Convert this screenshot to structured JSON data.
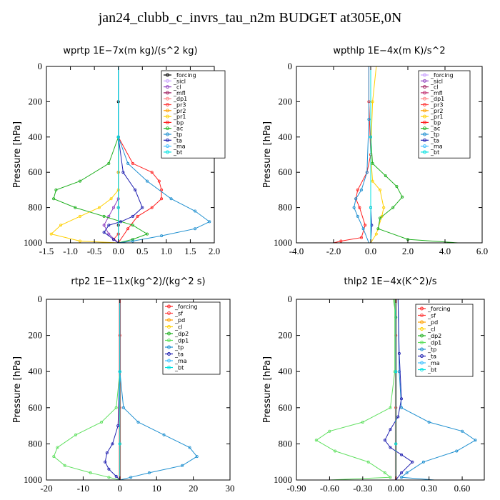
{
  "title": "jan24_clubb_c_invrs_tau_n2m  BUDGET at305E,0N",
  "chart_data": [
    {
      "type": "line",
      "title": "wprtp   1E−7x(m kg)/(s^2 kg)",
      "ylabel": "Pressure [hPa]",
      "ylim": [
        1000,
        0
      ],
      "xlim": [
        -1.5,
        2.0
      ],
      "xticks": [
        "-1.5",
        "-1.0",
        "-0.5",
        "0.0",
        "0.5",
        "1.0",
        "1.5",
        "2.0"
      ],
      "xtick_values": [
        -1.5,
        -1.0,
        -0.5,
        0.0,
        0.5,
        1.0,
        1.5,
        2.0
      ],
      "yticks": [
        "0",
        "200",
        "400",
        "600",
        "800",
        "1000"
      ],
      "ytick_values": [
        0,
        200,
        400,
        600,
        800,
        1000
      ],
      "legend_position": "top-right",
      "series": [
        {
          "name": "_forcing",
          "color": "#000000",
          "x": [
            0,
            0,
            0,
            0,
            0,
            0,
            0,
            0
          ],
          "y": [
            0,
            200,
            400,
            600,
            800,
            900,
            950,
            1000
          ]
        },
        {
          "name": "_sicl",
          "color": "#c8a0ff",
          "x": [
            0,
            0,
            0,
            0
          ],
          "y": [
            0,
            400,
            800,
            1000
          ]
        },
        {
          "name": "_cl",
          "color": "#9040c0",
          "x": [
            0,
            0,
            0,
            0,
            -0.1,
            -0.2,
            -0.3,
            -0.2,
            0
          ],
          "y": [
            0,
            400,
            600,
            750,
            800,
            850,
            900,
            950,
            1000
          ]
        },
        {
          "name": "_mfl",
          "color": "#a02060",
          "x": [
            0,
            0,
            0,
            0
          ],
          "y": [
            0,
            400,
            800,
            1000
          ]
        },
        {
          "name": "_dp1",
          "color": "#ff8080",
          "x": [
            0,
            0,
            0,
            0
          ],
          "y": [
            0,
            400,
            800,
            1000
          ]
        },
        {
          "name": "_pr3",
          "color": "#ff4040",
          "x": [
            0,
            0,
            0,
            0,
            -0.1,
            0
          ],
          "y": [
            0,
            400,
            800,
            950,
            980,
            1000
          ]
        },
        {
          "name": "_pr2",
          "color": "#ffa000",
          "x": [
            0,
            0,
            0,
            0
          ],
          "y": [
            0,
            400,
            800,
            1000
          ]
        },
        {
          "name": "_pr1",
          "color": "#ffd000",
          "x": [
            0,
            0,
            0,
            0,
            -0.15,
            -0.4,
            -0.8,
            -1.2,
            -1.4,
            -0.8,
            0
          ],
          "y": [
            0,
            400,
            600,
            700,
            750,
            800,
            850,
            900,
            950,
            990,
            1000
          ]
        },
        {
          "name": "_bp",
          "color": "#ff2020",
          "x": [
            0,
            0,
            0.3,
            0.7,
            0.85,
            0.9,
            0.9,
            0.7,
            0.4,
            0.2,
            0
          ],
          "y": [
            0,
            400,
            550,
            600,
            650,
            700,
            750,
            800,
            850,
            920,
            1000
          ]
        },
        {
          "name": "_ac",
          "color": "#20b020",
          "x": [
            0,
            0,
            -0.2,
            -0.8,
            -1.3,
            -1.35,
            -0.9,
            -0.3,
            0.3,
            0.6,
            0.3,
            0
          ],
          "y": [
            0,
            400,
            550,
            650,
            700,
            750,
            800,
            850,
            900,
            950,
            980,
            1000
          ]
        },
        {
          "name": "_tp",
          "color": "#2090d0",
          "x": [
            0,
            0,
            0.2,
            0.6,
            1.1,
            1.6,
            1.9,
            1.6,
            0.9,
            0.3,
            0
          ],
          "y": [
            0,
            400,
            550,
            650,
            750,
            820,
            880,
            920,
            960,
            990,
            1000
          ]
        },
        {
          "name": "_ta",
          "color": "#2020b0",
          "x": [
            0,
            0,
            0.1,
            0.35,
            0.5,
            0.3,
            0.05,
            -0.2,
            -0.3,
            -0.1,
            0
          ],
          "y": [
            0,
            400,
            600,
            700,
            800,
            850,
            880,
            900,
            940,
            980,
            1000
          ]
        },
        {
          "name": "_ma",
          "color": "#40c0ff",
          "x": [
            0,
            0,
            0,
            0
          ],
          "y": [
            0,
            400,
            800,
            1000
          ]
        },
        {
          "name": "_bt",
          "color": "#00e0e0",
          "x": [
            0,
            0,
            0,
            0
          ],
          "y": [
            0,
            400,
            800,
            1000
          ]
        }
      ]
    },
    {
      "type": "line",
      "title": "wpthlp   1E−4x(m K)/s^2",
      "ylabel": "Pressure [hPa]",
      "ylim": [
        1000,
        0
      ],
      "xlim": [
        -4.0,
        6.0
      ],
      "xticks": [
        "-4.0",
        "-2.0",
        "0.0",
        "2.0",
        "4.0",
        "6.0"
      ],
      "xtick_values": [
        -4.0,
        -2.0,
        0.0,
        2.0,
        4.0,
        6.0
      ],
      "yticks": [
        "0",
        "200",
        "400",
        "600",
        "800",
        "1000"
      ],
      "ytick_values": [
        0,
        200,
        400,
        600,
        800,
        1000
      ],
      "legend_position": "top-right",
      "series": [
        {
          "name": "_forcing",
          "color": "#c8a0ff",
          "x": [
            0,
            0,
            0,
            0
          ],
          "y": [
            0,
            400,
            800,
            1000
          ]
        },
        {
          "name": "_sicl",
          "color": "#9040c0",
          "x": [
            0,
            0,
            0,
            0
          ],
          "y": [
            0,
            400,
            800,
            1000
          ]
        },
        {
          "name": "_cl",
          "color": "#a02060",
          "x": [
            0,
            0,
            0,
            0
          ],
          "y": [
            0,
            400,
            800,
            1000
          ]
        },
        {
          "name": "_mfl",
          "color": "#c03070",
          "x": [
            0,
            0,
            0,
            0
          ],
          "y": [
            0,
            400,
            800,
            1000
          ]
        },
        {
          "name": "_dp1",
          "color": "#ff8080",
          "x": [
            0,
            0,
            0,
            0
          ],
          "y": [
            0,
            400,
            800,
            1000
          ]
        },
        {
          "name": "_pr3",
          "color": "#ff4040",
          "x": [
            0,
            0,
            0,
            0
          ],
          "y": [
            0,
            400,
            800,
            1000
          ]
        },
        {
          "name": "_pr2",
          "color": "#ffa000",
          "x": [
            0,
            0,
            0,
            0
          ],
          "y": [
            0,
            400,
            800,
            1000
          ]
        },
        {
          "name": "_pr1",
          "color": "#ffd000",
          "x": [
            0.3,
            0.1,
            0,
            0.1,
            0.5,
            0.7,
            0.6,
            0.3,
            0
          ],
          "y": [
            0,
            200,
            500,
            650,
            700,
            800,
            850,
            950,
            1000
          ]
        },
        {
          "name": "_bp",
          "color": "#ff2020",
          "x": [
            -0.1,
            -0.1,
            0,
            -0.2,
            -0.7,
            -0.8,
            -0.6,
            -0.3,
            -0.5,
            -1.6,
            -2.0
          ],
          "y": [
            0,
            200,
            500,
            600,
            700,
            750,
            800,
            900,
            970,
            990,
            1000
          ]
        },
        {
          "name": "_ac",
          "color": "#20b020",
          "x": [
            0,
            0,
            0.1,
            0.8,
            1.4,
            1.7,
            1.2,
            0.5,
            0.4,
            2.0,
            4.7
          ],
          "y": [
            0,
            400,
            550,
            620,
            680,
            740,
            800,
            860,
            920,
            980,
            1000
          ]
        },
        {
          "name": "_tp",
          "color": "#2090d0",
          "x": [
            -0.1,
            -0.1,
            -0.2,
            -0.5,
            -0.8,
            -0.9,
            -0.7,
            -0.4,
            -0.1
          ],
          "y": [
            0,
            300,
            600,
            700,
            750,
            800,
            850,
            920,
            1000
          ]
        },
        {
          "name": "_ta",
          "color": "#2020b0",
          "x": [
            0,
            0,
            0,
            0.05,
            0
          ],
          "y": [
            0,
            400,
            800,
            900,
            1000
          ]
        },
        {
          "name": "_ma",
          "color": "#40c0ff",
          "x": [
            0,
            0,
            0,
            0
          ],
          "y": [
            0,
            400,
            800,
            1000
          ]
        },
        {
          "name": "_bt",
          "color": "#00e0e0",
          "x": [
            0,
            0,
            0,
            0
          ],
          "y": [
            0,
            400,
            800,
            1000
          ]
        }
      ]
    },
    {
      "type": "line",
      "title": "rtp2   1E−11x(kg^2)/(kg^2 s)",
      "ylabel": "Pressure [hPa]",
      "ylim": [
        1000,
        0
      ],
      "xlim": [
        -20,
        30
      ],
      "xticks": [
        "-20",
        "-10",
        "0",
        "10",
        "20",
        "30"
      ],
      "xtick_values": [
        -20,
        -10,
        0,
        10,
        20,
        30
      ],
      "yticks": [
        "0",
        "200",
        "400",
        "600",
        "800",
        "1000"
      ],
      "ytick_values": [
        0,
        200,
        400,
        600,
        800,
        1000
      ],
      "legend_position": "top-right",
      "series": [
        {
          "name": "_forcing",
          "color": "#ff2020",
          "x": [
            0,
            0,
            0,
            0,
            0,
            0
          ],
          "y": [
            0,
            200,
            400,
            600,
            800,
            1000
          ]
        },
        {
          "name": "_sf",
          "color": "#ff4040",
          "x": [
            0,
            0,
            0,
            0
          ],
          "y": [
            0,
            400,
            800,
            1000
          ]
        },
        {
          "name": "_pd",
          "color": "#ffa000",
          "x": [
            0,
            0,
            0,
            0
          ],
          "y": [
            0,
            400,
            800,
            1000
          ]
        },
        {
          "name": "_cl",
          "color": "#ffd000",
          "x": [
            0,
            0,
            0,
            0
          ],
          "y": [
            0,
            400,
            800,
            1000
          ]
        },
        {
          "name": "_dp2",
          "color": "#20b020",
          "x": [
            0,
            0,
            0,
            0
          ],
          "y": [
            0,
            400,
            800,
            1000
          ]
        },
        {
          "name": "_dp1",
          "color": "#60e060",
          "x": [
            0,
            0,
            -1,
            -5,
            -12,
            -17,
            -18,
            -15,
            -8,
            -3,
            0
          ],
          "y": [
            0,
            400,
            600,
            680,
            750,
            820,
            870,
            920,
            960,
            985,
            1000
          ]
        },
        {
          "name": "_tp",
          "color": "#2090d0",
          "x": [
            0,
            0,
            1,
            5,
            12,
            19,
            21,
            17,
            8,
            3,
            0
          ],
          "y": [
            0,
            400,
            600,
            680,
            750,
            820,
            870,
            920,
            960,
            985,
            1000
          ]
        },
        {
          "name": "_ta",
          "color": "#2020b0",
          "x": [
            0,
            0,
            -0.5,
            -2,
            -3.5,
            -4,
            -3,
            -1,
            0
          ],
          "y": [
            0,
            400,
            700,
            800,
            850,
            900,
            940,
            980,
            1000
          ]
        },
        {
          "name": "_ma",
          "color": "#40c0ff",
          "x": [
            0,
            0,
            0,
            0
          ],
          "y": [
            0,
            400,
            800,
            1000
          ]
        },
        {
          "name": "_bt",
          "color": "#00e0e0",
          "x": [
            0,
            0,
            0,
            0
          ],
          "y": [
            0,
            400,
            800,
            1000
          ]
        }
      ]
    },
    {
      "type": "line",
      "title": "thlp2   1E−4x(K^2)/s",
      "ylabel": "Pressure [hPa]",
      "ylim": [
        1000,
        0
      ],
      "xlim": [
        -0.9,
        0.8
      ],
      "xticks": [
        "-0.90",
        "-0.60",
        "-0.30",
        "0.00",
        "0.30",
        "0.60"
      ],
      "xtick_values": [
        -0.9,
        -0.6,
        -0.3,
        0.0,
        0.3,
        0.6
      ],
      "yticks": [
        "0",
        "200",
        "400",
        "600",
        "800",
        "1000"
      ],
      "ytick_values": [
        0,
        200,
        400,
        600,
        800,
        1000
      ],
      "legend_position": "top-right",
      "series": [
        {
          "name": "_forcing",
          "color": "#ff2020",
          "x": [
            0,
            0,
            0,
            0,
            0,
            0
          ],
          "y": [
            0,
            200,
            400,
            600,
            800,
            1000
          ]
        },
        {
          "name": "_sf",
          "color": "#ff4040",
          "x": [
            0,
            0,
            0,
            0
          ],
          "y": [
            0,
            400,
            800,
            1000
          ]
        },
        {
          "name": "_pd",
          "color": "#ffa000",
          "x": [
            0,
            0,
            0,
            0
          ],
          "y": [
            0,
            400,
            800,
            1000
          ]
        },
        {
          "name": "_cl",
          "color": "#ffd000",
          "x": [
            0,
            0,
            0,
            0
          ],
          "y": [
            0,
            400,
            800,
            1000
          ]
        },
        {
          "name": "_dp2",
          "color": "#20b020",
          "x": [
            -0.02,
            0,
            0,
            0,
            0
          ],
          "y": [
            0,
            100,
            400,
            800,
            1000
          ]
        },
        {
          "name": "_dp1",
          "color": "#60e060",
          "x": [
            -0.01,
            -0.01,
            -0.05,
            -0.3,
            -0.6,
            -0.72,
            -0.55,
            -0.25,
            -0.1,
            -0.05,
            -0.6
          ],
          "y": [
            0,
            400,
            600,
            680,
            730,
            780,
            840,
            900,
            960,
            985,
            1000
          ]
        },
        {
          "name": "_tp",
          "color": "#2090d0",
          "x": [
            0.02,
            0.03,
            0.05,
            0.3,
            0.6,
            0.72,
            0.55,
            0.25,
            0.1,
            0.05,
            0.35
          ],
          "y": [
            0,
            400,
            600,
            680,
            730,
            780,
            840,
            900,
            960,
            985,
            1000
          ]
        },
        {
          "name": "_ta",
          "color": "#2020b0",
          "x": [
            0.02,
            0.03,
            0.05,
            0.02,
            -0.05,
            -0.1,
            -0.05,
            0.05,
            0.15,
            0.05,
            0
          ],
          "y": [
            0,
            300,
            550,
            650,
            720,
            780,
            820,
            860,
            900,
            960,
            1000
          ]
        },
        {
          "name": "_ma",
          "color": "#40c0ff",
          "x": [
            0,
            0,
            0,
            0
          ],
          "y": [
            0,
            400,
            800,
            1000
          ]
        },
        {
          "name": "_bt",
          "color": "#00e0e0",
          "x": [
            0,
            0,
            0,
            0
          ],
          "y": [
            0,
            400,
            800,
            1000
          ]
        }
      ]
    }
  ]
}
